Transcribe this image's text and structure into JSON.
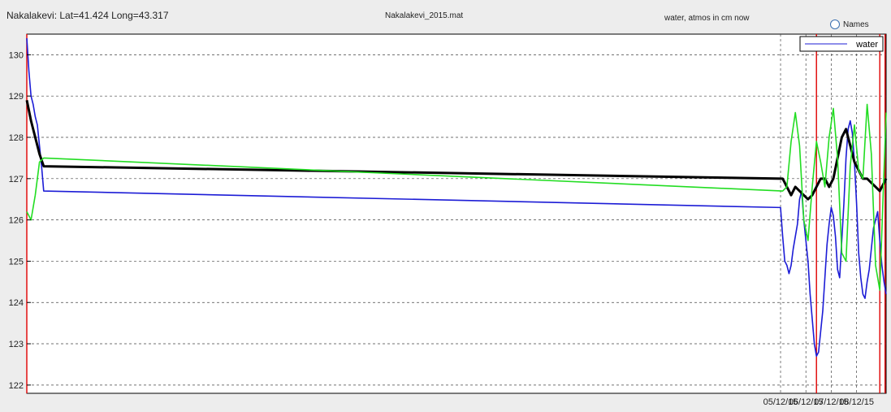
{
  "header": {
    "station": "Nakalakevi: Lat=41.424 Long=43.317",
    "file": "Nakalakevi_2015.mat",
    "units_note": "water, atmos in cm now",
    "names_option": "Names"
  },
  "chart_data": {
    "type": "line",
    "xlim": [
      "05/11/15 06:00",
      "09/12/15 04:00"
    ],
    "ylim": [
      121.8,
      130.5
    ],
    "yticks": [
      122,
      123,
      124,
      125,
      126,
      127,
      128,
      129,
      130
    ],
    "xticks": [
      {
        "label": "05/12/15",
        "x": "05/12/15 00:00"
      },
      {
        "label": "06/12/15",
        "x": "06/12/15 00:00"
      },
      {
        "label": "07/12/15",
        "x": "07/12/15 00:00"
      },
      {
        "label": "08/12/15",
        "x": "08/12/15 00:00"
      }
    ],
    "grid": true,
    "legend": {
      "position": "top-right",
      "entries": [
        "water"
      ]
    },
    "markers": [
      "05/11/15 06:00",
      "06/12/15 10:00",
      "08/12/15 22:00",
      "09/12/15 03:00"
    ],
    "series": [
      {
        "name": "water",
        "color": "#1c1cd6",
        "x": [
          "05/11/15 06:00",
          "05/11/15 08:00",
          "05/11/15 10:00",
          "05/11/15 12:00",
          "05/11/15 14:00",
          "05/11/15 16:00",
          "05/11/15 18:00",
          "05/11/15 20:00",
          "05/11/15 22:00",
          "05/12/15 00:00",
          "05/12/15 02:00",
          "05/12/15 04:00",
          "05/12/15 06:00",
          "05/12/15 08:00",
          "05/12/15 10:00",
          "05/12/15 12:00",
          "05/12/15 14:00",
          "05/12/15 16:00",
          "05/12/15 18:00",
          "05/12/15 20:00",
          "05/12/15 22:00",
          "06/12/15 00:00",
          "06/12/15 02:00",
          "06/12/15 04:00",
          "06/12/15 06:00",
          "06/12/15 08:00",
          "06/12/15 10:00",
          "06/12/15 12:00",
          "06/12/15 14:00",
          "06/12/15 16:00",
          "06/12/15 18:00",
          "06/12/15 20:00",
          "06/12/15 22:00",
          "07/12/15 00:00",
          "07/12/15 02:00",
          "07/12/15 04:00",
          "07/12/15 06:00",
          "07/12/15 08:00",
          "07/12/15 10:00",
          "07/12/15 12:00",
          "07/12/15 14:00",
          "07/12/15 16:00",
          "07/12/15 18:00",
          "07/12/15 20:00",
          "07/12/15 22:00",
          "08/12/15 00:00",
          "08/12/15 02:00",
          "08/12/15 04:00",
          "08/12/15 06:00",
          "08/12/15 08:00",
          "08/12/15 10:00",
          "08/12/15 12:00",
          "08/12/15 14:00",
          "08/12/15 16:00",
          "08/12/15 18:00",
          "08/12/15 20:00",
          "08/12/15 22:00",
          "09/12/15 00:00",
          "09/12/15 02:00",
          "09/12/15 04:00"
        ],
        "values": [
          130.4,
          129.6,
          129.0,
          128.8,
          128.5,
          128.3,
          127.8,
          127.3,
          126.7,
          126.3,
          125.6,
          125.0,
          124.9,
          124.7,
          124.9,
          125.3,
          125.6,
          125.9,
          126.5,
          126.7,
          126.0,
          125.5,
          125.0,
          124.2,
          123.6,
          123.0,
          122.7,
          122.8,
          123.3,
          123.8,
          124.6,
          125.4,
          125.9,
          126.3,
          126.1,
          125.6,
          124.8,
          124.6,
          125.5,
          126.4,
          127.5,
          128.2,
          128.4,
          128.1,
          127.4,
          126.4,
          125.2,
          124.6,
          124.2,
          124.1,
          124.5,
          124.8,
          125.3,
          125.8,
          126.0,
          126.2,
          125.5,
          124.9,
          124.5,
          124.2
        ]
      },
      {
        "name": "",
        "color": "#000000",
        "x": [
          "05/11/15 06:00",
          "05/11/15 10:00",
          "05/11/15 14:00",
          "05/11/15 18:00",
          "05/11/15 22:00",
          "05/12/15 02:00",
          "05/12/15 06:00",
          "05/12/15 10:00",
          "05/12/15 14:00",
          "05/12/15 18:00",
          "05/12/15 22:00",
          "06/12/15 02:00",
          "06/12/15 06:00",
          "06/12/15 10:00",
          "06/12/15 14:00",
          "06/12/15 18:00",
          "06/12/15 22:00",
          "07/12/15 02:00",
          "07/12/15 06:00",
          "07/12/15 10:00",
          "07/12/15 14:00",
          "07/12/15 18:00",
          "07/12/15 22:00",
          "08/12/15 02:00",
          "08/12/15 06:00",
          "08/12/15 10:00",
          "08/12/15 14:00",
          "08/12/15 18:00",
          "08/12/15 22:00",
          "09/12/15 02:00",
          "09/12/15 04:00"
        ],
        "values": [
          128.9,
          128.4,
          128.0,
          127.6,
          127.3,
          127.0,
          126.8,
          126.6,
          126.8,
          126.7,
          126.6,
          126.5,
          126.6,
          126.8,
          127.0,
          127.0,
          126.8,
          127.0,
          127.5,
          128.0,
          128.2,
          127.8,
          127.4,
          127.2,
          127.0,
          127.0,
          126.9,
          126.8,
          126.7,
          126.9,
          127.0
        ]
      },
      {
        "name": "",
        "color": "#22dd22",
        "x": [
          "05/11/15 06:00",
          "05/11/15 10:00",
          "05/11/15 14:00",
          "05/11/15 18:00",
          "05/11/15 22:00",
          "05/12/15 02:00",
          "05/12/15 06:00",
          "05/12/15 10:00",
          "05/12/15 14:00",
          "05/12/15 18:00",
          "05/12/15 22:00",
          "06/12/15 02:00",
          "06/12/15 06:00",
          "06/12/15 10:00",
          "06/12/15 14:00",
          "06/12/15 18:00",
          "06/12/15 22:00",
          "07/12/15 02:00",
          "07/12/15 06:00",
          "07/12/15 10:00",
          "07/12/15 14:00",
          "07/12/15 18:00",
          "07/12/15 22:00",
          "08/12/15 02:00",
          "08/12/15 06:00",
          "08/12/15 10:00",
          "08/12/15 14:00",
          "08/12/15 18:00",
          "08/12/15 22:00",
          "09/12/15 02:00",
          "09/12/15 04:00"
        ],
        "values": [
          126.2,
          126.0,
          126.6,
          127.4,
          127.5,
          126.7,
          126.8,
          127.9,
          128.6,
          127.8,
          126.0,
          125.5,
          126.8,
          127.9,
          127.4,
          126.8,
          128.0,
          128.7,
          127.5,
          125.2,
          125.0,
          127.3,
          128.3,
          127.2,
          127.0,
          128.8,
          127.6,
          124.9,
          124.3,
          127.2,
          128.6
        ]
      }
    ]
  }
}
